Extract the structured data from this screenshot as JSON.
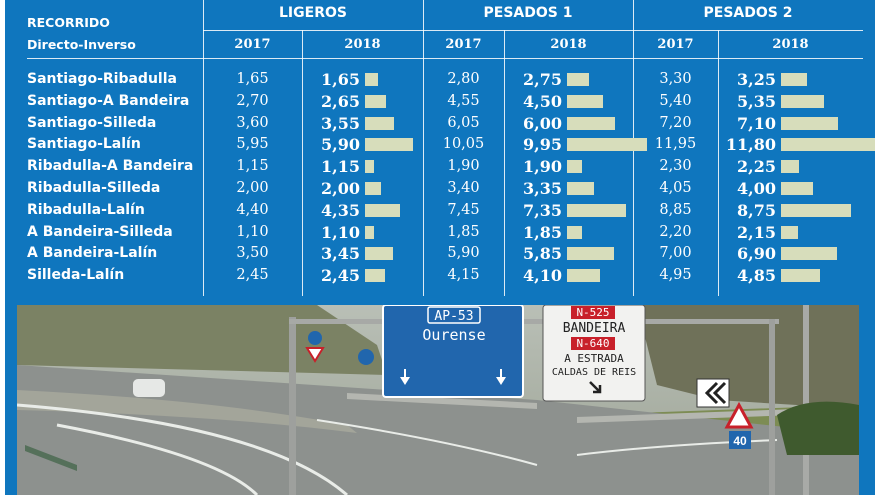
{
  "chart_data": {
    "type": "table",
    "row_header": [
      "RECORRIDO",
      "Directo-Inverso"
    ],
    "groups": [
      {
        "name": "LIGEROS",
        "years": [
          "2017",
          "2018"
        ]
      },
      {
        "name": "PESADOS 1",
        "years": [
          "2017",
          "2018"
        ]
      },
      {
        "name": "PESADOS 2",
        "years": [
          "2017",
          "2018"
        ]
      }
    ],
    "routes": [
      "Santiago-Ribadulla",
      "Santiago-A Bandeira",
      "Santiago-Silleda",
      "Santiago-Lalín",
      "Ribadulla-A Bandeira",
      "Ribadulla-Silleda",
      "Ribadulla-Lalín",
      "A Bandeira-Silleda",
      "A Bandeira-Lalín",
      "Silleda-Lalín"
    ],
    "values": {
      "LIGEROS": {
        "2017": [
          "1,65",
          "2,70",
          "3,60",
          "5,95",
          "1,15",
          "2,00",
          "4,40",
          "1,10",
          "3,50",
          "2,45"
        ],
        "2018": [
          "1,65",
          "2,65",
          "3,55",
          "5,90",
          "1,15",
          "2,00",
          "4,35",
          "1,10",
          "3,45",
          "2,45"
        ]
      },
      "PESADOS 1": {
        "2017": [
          "2,80",
          "4,55",
          "6,05",
          "10,05",
          "1,90",
          "3,40",
          "7,45",
          "1,85",
          "5,90",
          "4,15"
        ],
        "2018": [
          "2,75",
          "4,50",
          "6,00",
          "9,95",
          "1,90",
          "3,35",
          "7,35",
          "1,85",
          "5,85",
          "4,10"
        ]
      },
      "PESADOS 2": {
        "2017": [
          "3,30",
          "5,40",
          "7,20",
          "11,95",
          "2,30",
          "4,05",
          "8,85",
          "2,20",
          "7,00",
          "4,95"
        ],
        "2018": [
          "3,25",
          "5,35",
          "7,10",
          "11,80",
          "2,25",
          "4,00",
          "8,75",
          "2,15",
          "6,90",
          "4,85"
        ]
      }
    },
    "bar_series": "2018",
    "grid": true
  },
  "photo": {
    "sign_blue": {
      "code": "AP-53",
      "city": "Ourense"
    },
    "sign_white": {
      "code_top": "N-525",
      "line1": "BANDEIRA",
      "code_bottom": "N-640",
      "line2": "A ESTRADA",
      "line3": "CALDAS DE REIS"
    },
    "speed_sign": "40",
    "colors": {
      "panel_blue": "#0f76be",
      "sign_blue": "#2166ad",
      "sign_red": "#c8202a",
      "bar_fill": "#d7ddbb"
    }
  }
}
